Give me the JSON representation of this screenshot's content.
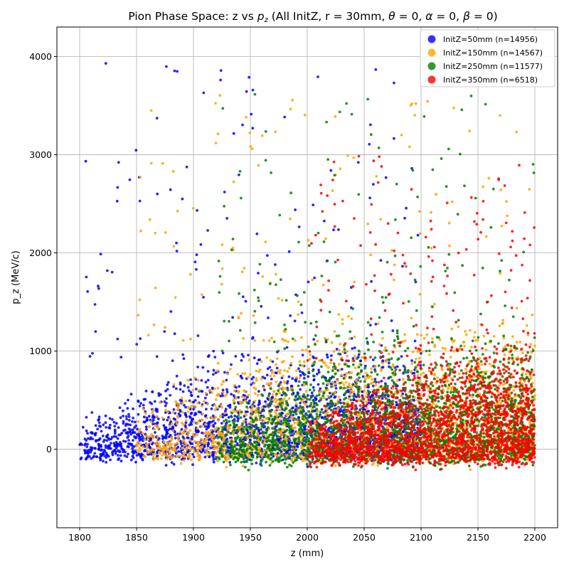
{
  "chart_data": {
    "type": "scatter",
    "title": "Pion Phase Space: z vs p_z (All InitZ, r = 30mm, θ = 0, α = 0, β = 0)",
    "xlabel": "z (mm)",
    "ylabel": "p_z (MeV/c)",
    "xlim": [
      1780,
      2220
    ],
    "ylim": [
      -800,
      4300
    ],
    "xticks": [
      1800,
      1850,
      1900,
      1950,
      2000,
      2050,
      2100,
      2150,
      2200
    ],
    "yticks": [
      0,
      1000,
      2000,
      3000,
      4000
    ],
    "grid": true,
    "legend_position": "top-right",
    "series": [
      {
        "name": "InitZ=50mm (n=14956)",
        "color": "#0000ff",
        "z_range": [
          1800,
          2100
        ],
        "core_pz_range": [
          -200,
          900
        ],
        "max_pz": 3930
      },
      {
        "name": "InitZ=150mm (n=14567)",
        "color": "#ffa500",
        "z_range": [
          1850,
          2200
        ],
        "core_pz_range": [
          -250,
          1100
        ],
        "max_pz": 3750
      },
      {
        "name": "InitZ=250mm (n=11577)",
        "color": "#008000",
        "z_range": [
          1920,
          2200
        ],
        "core_pz_range": [
          -300,
          1000
        ],
        "max_pz": 3630
      },
      {
        "name": "InitZ=350mm (n=6518)",
        "color": "#ff0000",
        "z_range": [
          2000,
          2200
        ],
        "core_pz_range": [
          -300,
          900
        ],
        "max_pz": 3000
      }
    ]
  }
}
